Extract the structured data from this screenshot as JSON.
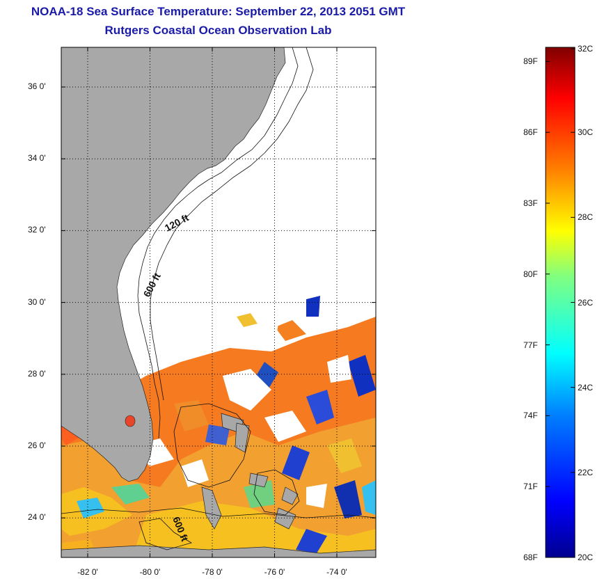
{
  "header": {
    "title": "NOAA-18 Sea Surface Temperature:  September 22, 2013 2051 GMT",
    "subtitle": "Rutgers Coastal Ocean Observation Lab"
  },
  "map": {
    "y_ticks": [
      {
        "value": 36,
        "label": "36 0'"
      },
      {
        "value": 34,
        "label": "34 0'"
      },
      {
        "value": 32,
        "label": "32 0'"
      },
      {
        "value": 30,
        "label": "30 0'"
      },
      {
        "value": 28,
        "label": "28 0'"
      },
      {
        "value": 26,
        "label": "26 0'"
      },
      {
        "value": 24,
        "label": "24 0'"
      }
    ],
    "x_ticks": [
      {
        "value": -82,
        "label": "-82 0'"
      },
      {
        "value": -80,
        "label": "-80 0'"
      },
      {
        "value": -78,
        "label": "-78 0'"
      },
      {
        "value": -76,
        "label": "-76 0'"
      },
      {
        "value": -74,
        "label": "-74 0'"
      }
    ],
    "contour_labels": {
      "label_120": "120 ft",
      "label_600a": "600 ft",
      "label_600b": "600 ft"
    },
    "colors": {
      "land": "#a8a8a8",
      "no_data": "#ffffff"
    }
  },
  "colorbar": {
    "range_c": [
      20,
      32
    ],
    "fahrenheit_labels": [
      {
        "value": 89,
        "label": "89F"
      },
      {
        "value": 86,
        "label": "86F"
      },
      {
        "value": 83,
        "label": "83F"
      },
      {
        "value": 80,
        "label": "80F"
      },
      {
        "value": 77,
        "label": "77F"
      },
      {
        "value": 74,
        "label": "74F"
      },
      {
        "value": 71,
        "label": "71F"
      },
      {
        "value": 68,
        "label": "68F"
      }
    ],
    "celsius_labels": [
      {
        "value": 32,
        "label": "32C"
      },
      {
        "value": 30,
        "label": "30C"
      },
      {
        "value": 28,
        "label": "28C"
      },
      {
        "value": 26,
        "label": "26C"
      },
      {
        "value": 24,
        "label": "24C"
      },
      {
        "value": 22,
        "label": "22C"
      },
      {
        "value": 20,
        "label": "20C"
      }
    ],
    "colors": [
      "#00008f",
      "#0000ff",
      "#0080ff",
      "#00ffff",
      "#80ff80",
      "#ffff00",
      "#ff8000",
      "#ff0000",
      "#800000"
    ]
  }
}
